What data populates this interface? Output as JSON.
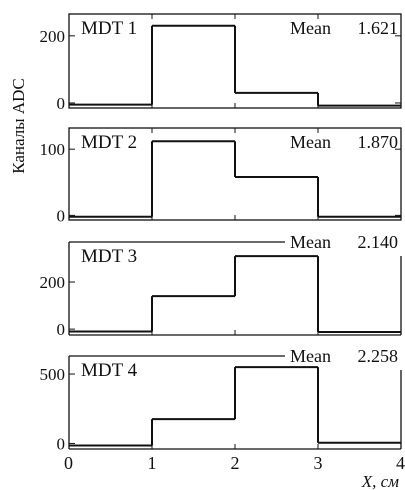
{
  "chart_data": {
    "type": "bar",
    "layout": "4 stacked histogram panels sharing the x axis",
    "ylabel": "Каналы ADC",
    "xlabel": "X, см",
    "x_ticks": [
      "0",
      "1",
      "2",
      "3",
      "4"
    ],
    "x_range": [
      0,
      4
    ],
    "bin_edges": [
      0,
      1,
      2,
      3,
      4
    ],
    "panels": [
      {
        "label": "MDT 1",
        "mean_label": "Mean",
        "mean_value": "1.621",
        "mean_boxed": false,
        "y_ticks": [
          0,
          200
        ],
        "y_tick_labels": [
          "0",
          "200"
        ],
        "ylim": [
          -15,
          265
        ],
        "values": [
          -5,
          230,
          30,
          -8
        ]
      },
      {
        "label": "MDT 2",
        "mean_label": "Mean",
        "mean_value": "1.870",
        "mean_boxed": false,
        "y_ticks": [
          0,
          100
        ],
        "y_tick_labels": [
          "0",
          "100"
        ],
        "ylim": [
          -7,
          132
        ],
        "values": [
          -2,
          112,
          58,
          -2
        ]
      },
      {
        "label": "MDT 3",
        "mean_label": "Mean",
        "mean_value": "2.140",
        "mean_boxed": true,
        "y_ticks": [
          0,
          200
        ],
        "y_tick_labels": [
          "0",
          "200"
        ],
        "ylim": [
          -25,
          370
        ],
        "values": [
          -10,
          140,
          310,
          -12
        ]
      },
      {
        "label": "MDT 4",
        "mean_label": "Mean",
        "mean_value": "2.258",
        "mean_boxed": true,
        "y_ticks": [
          0,
          500
        ],
        "y_tick_labels": [
          "0",
          "500"
        ],
        "ylim": [
          -40,
          630
        ],
        "values": [
          -15,
          175,
          550,
          5
        ]
      }
    ]
  }
}
